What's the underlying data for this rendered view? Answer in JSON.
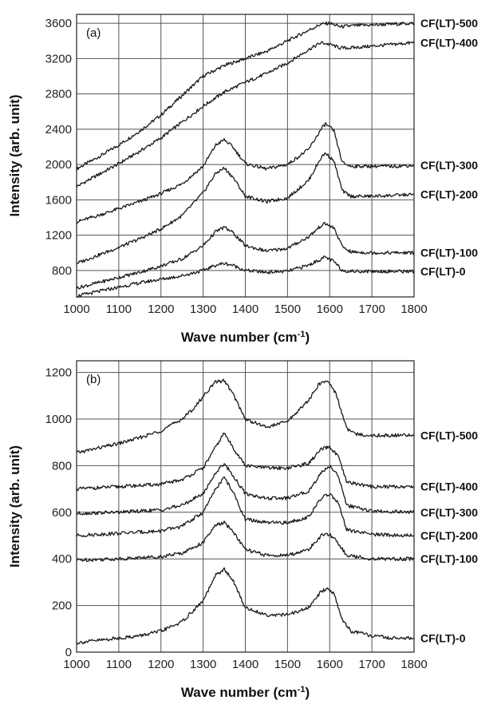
{
  "chart_data": [
    {
      "type": "line",
      "panel_label": "(a)",
      "title": "",
      "xlabel": "Wave number (cm",
      "xlabel_sup": "-1",
      "xlabel_close": ")",
      "ylabel": "Intensity (arb. unit)",
      "xlim": [
        1000,
        1800
      ],
      "ylim": [
        500,
        3700
      ],
      "xticks": [
        1000,
        1100,
        1200,
        1300,
        1400,
        1500,
        1600,
        1700,
        1800
      ],
      "yticks": [
        800,
        1200,
        1600,
        2000,
        2400,
        2800,
        3200,
        3600
      ],
      "grid": true,
      "series": [
        {
          "name": "CF(LT)-500",
          "x": [
            1000,
            1050,
            1100,
            1150,
            1200,
            1250,
            1300,
            1350,
            1400,
            1450,
            1500,
            1550,
            1580,
            1600,
            1625,
            1650,
            1700,
            1750,
            1800
          ],
          "y": [
            1950,
            2080,
            2220,
            2380,
            2560,
            2780,
            3000,
            3120,
            3200,
            3280,
            3400,
            3520,
            3590,
            3600,
            3560,
            3570,
            3580,
            3590,
            3600
          ]
        },
        {
          "name": "CF(LT)-400",
          "x": [
            1000,
            1050,
            1100,
            1150,
            1200,
            1250,
            1300,
            1350,
            1400,
            1450,
            1500,
            1550,
            1580,
            1600,
            1625,
            1650,
            1700,
            1750,
            1800
          ],
          "y": [
            1750,
            1880,
            2010,
            2150,
            2300,
            2480,
            2660,
            2820,
            2930,
            3030,
            3150,
            3300,
            3380,
            3360,
            3320,
            3320,
            3340,
            3360,
            3380
          ]
        },
        {
          "name": "CF(LT)-300",
          "x": [
            1000,
            1050,
            1100,
            1150,
            1200,
            1250,
            1300,
            1330,
            1350,
            1370,
            1400,
            1450,
            1500,
            1550,
            1580,
            1590,
            1610,
            1630,
            1650,
            1700,
            1750,
            1800
          ],
          "y": [
            1350,
            1420,
            1500,
            1580,
            1670,
            1780,
            1980,
            2220,
            2280,
            2200,
            2010,
            1950,
            2000,
            2170,
            2400,
            2460,
            2380,
            2020,
            1980,
            1980,
            1980,
            1990
          ]
        },
        {
          "name": "CF(LT)-200",
          "x": [
            1000,
            1050,
            1100,
            1150,
            1200,
            1250,
            1300,
            1330,
            1350,
            1370,
            1400,
            1450,
            1500,
            1550,
            1580,
            1590,
            1610,
            1630,
            1650,
            1700,
            1750,
            1800
          ],
          "y": [
            880,
            970,
            1060,
            1160,
            1270,
            1420,
            1680,
            1900,
            1960,
            1860,
            1640,
            1580,
            1620,
            1820,
            2080,
            2130,
            2040,
            1700,
            1640,
            1640,
            1650,
            1660
          ]
        },
        {
          "name": "CF(LT)-100",
          "x": [
            1000,
            1050,
            1100,
            1150,
            1200,
            1250,
            1300,
            1330,
            1350,
            1370,
            1400,
            1450,
            1500,
            1550,
            1580,
            1590,
            1610,
            1630,
            1650,
            1700,
            1750,
            1800
          ],
          "y": [
            600,
            660,
            720,
            780,
            850,
            930,
            1080,
            1240,
            1290,
            1230,
            1080,
            1020,
            1050,
            1180,
            1310,
            1330,
            1280,
            1070,
            1010,
            1000,
            1000,
            1000
          ]
        },
        {
          "name": "CF(LT)-0",
          "x": [
            1000,
            1050,
            1100,
            1150,
            1200,
            1250,
            1300,
            1330,
            1350,
            1370,
            1400,
            1450,
            1500,
            1550,
            1580,
            1590,
            1610,
            1630,
            1650,
            1700,
            1750,
            1800
          ],
          "y": [
            510,
            560,
            610,
            660,
            700,
            740,
            800,
            860,
            880,
            860,
            800,
            780,
            790,
            860,
            930,
            950,
            900,
            800,
            790,
            790,
            790,
            790
          ]
        }
      ]
    },
    {
      "type": "line",
      "panel_label": "(b)",
      "title": "",
      "xlabel": "Wave number (cm",
      "xlabel_sup": "-1",
      "xlabel_close": ")",
      "ylabel": "Intensity (arb. unit)",
      "xlim": [
        1000,
        1800
      ],
      "ylim": [
        0,
        1250
      ],
      "xticks": [
        1000,
        1100,
        1200,
        1300,
        1400,
        1500,
        1600,
        1700,
        1800
      ],
      "yticks": [
        0,
        200,
        400,
        600,
        800,
        1000,
        1200
      ],
      "grid": true,
      "series": [
        {
          "name": "CF(LT)-500",
          "x": [
            1000,
            1050,
            1100,
            1150,
            1200,
            1250,
            1280,
            1310,
            1330,
            1350,
            1370,
            1400,
            1450,
            1500,
            1550,
            1575,
            1595,
            1615,
            1640,
            1660,
            1700,
            1750,
            1800
          ],
          "y": [
            855,
            875,
            895,
            920,
            950,
            1000,
            1050,
            1120,
            1160,
            1165,
            1110,
            1000,
            965,
            990,
            1080,
            1150,
            1165,
            1110,
            960,
            935,
            930,
            930,
            930
          ]
        },
        {
          "name": "CF(LT)-400",
          "x": [
            1000,
            1100,
            1200,
            1250,
            1300,
            1330,
            1350,
            1370,
            1400,
            1450,
            1500,
            1550,
            1580,
            1600,
            1620,
            1640,
            1700,
            1800
          ],
          "y": [
            700,
            710,
            720,
            740,
            790,
            880,
            940,
            880,
            800,
            790,
            790,
            810,
            870,
            880,
            840,
            730,
            710,
            710
          ]
        },
        {
          "name": "CF(LT)-300",
          "x": [
            1000,
            1100,
            1200,
            1250,
            1300,
            1330,
            1350,
            1370,
            1400,
            1450,
            1500,
            1550,
            1580,
            1600,
            1620,
            1640,
            1700,
            1800
          ],
          "y": [
            595,
            600,
            610,
            630,
            680,
            770,
            810,
            760,
            680,
            660,
            660,
            690,
            770,
            800,
            760,
            630,
            605,
            600
          ]
        },
        {
          "name": "CF(LT)-200",
          "x": [
            1000,
            1100,
            1200,
            1250,
            1300,
            1330,
            1350,
            1370,
            1400,
            1450,
            1500,
            1550,
            1580,
            1600,
            1620,
            1640,
            1700,
            1800
          ],
          "y": [
            500,
            510,
            520,
            540,
            600,
            700,
            750,
            690,
            570,
            555,
            555,
            580,
            660,
            680,
            640,
            525,
            505,
            500
          ]
        },
        {
          "name": "CF(LT)-100",
          "x": [
            1000,
            1100,
            1200,
            1250,
            1300,
            1330,
            1350,
            1370,
            1400,
            1450,
            1500,
            1550,
            1580,
            1600,
            1620,
            1640,
            1700,
            1800
          ],
          "y": [
            395,
            400,
            410,
            425,
            470,
            545,
            555,
            520,
            440,
            415,
            415,
            440,
            500,
            505,
            470,
            415,
            400,
            400
          ]
        },
        {
          "name": "CF(LT)-0",
          "x": [
            1000,
            1050,
            1100,
            1150,
            1200,
            1250,
            1300,
            1330,
            1350,
            1370,
            1400,
            1450,
            1500,
            1550,
            1580,
            1595,
            1610,
            1630,
            1650,
            1700,
            1750,
            1800
          ],
          "y": [
            40,
            50,
            60,
            70,
            90,
            130,
            220,
            330,
            355,
            310,
            190,
            160,
            160,
            190,
            260,
            275,
            250,
            140,
            90,
            70,
            60,
            60
          ]
        }
      ]
    }
  ]
}
